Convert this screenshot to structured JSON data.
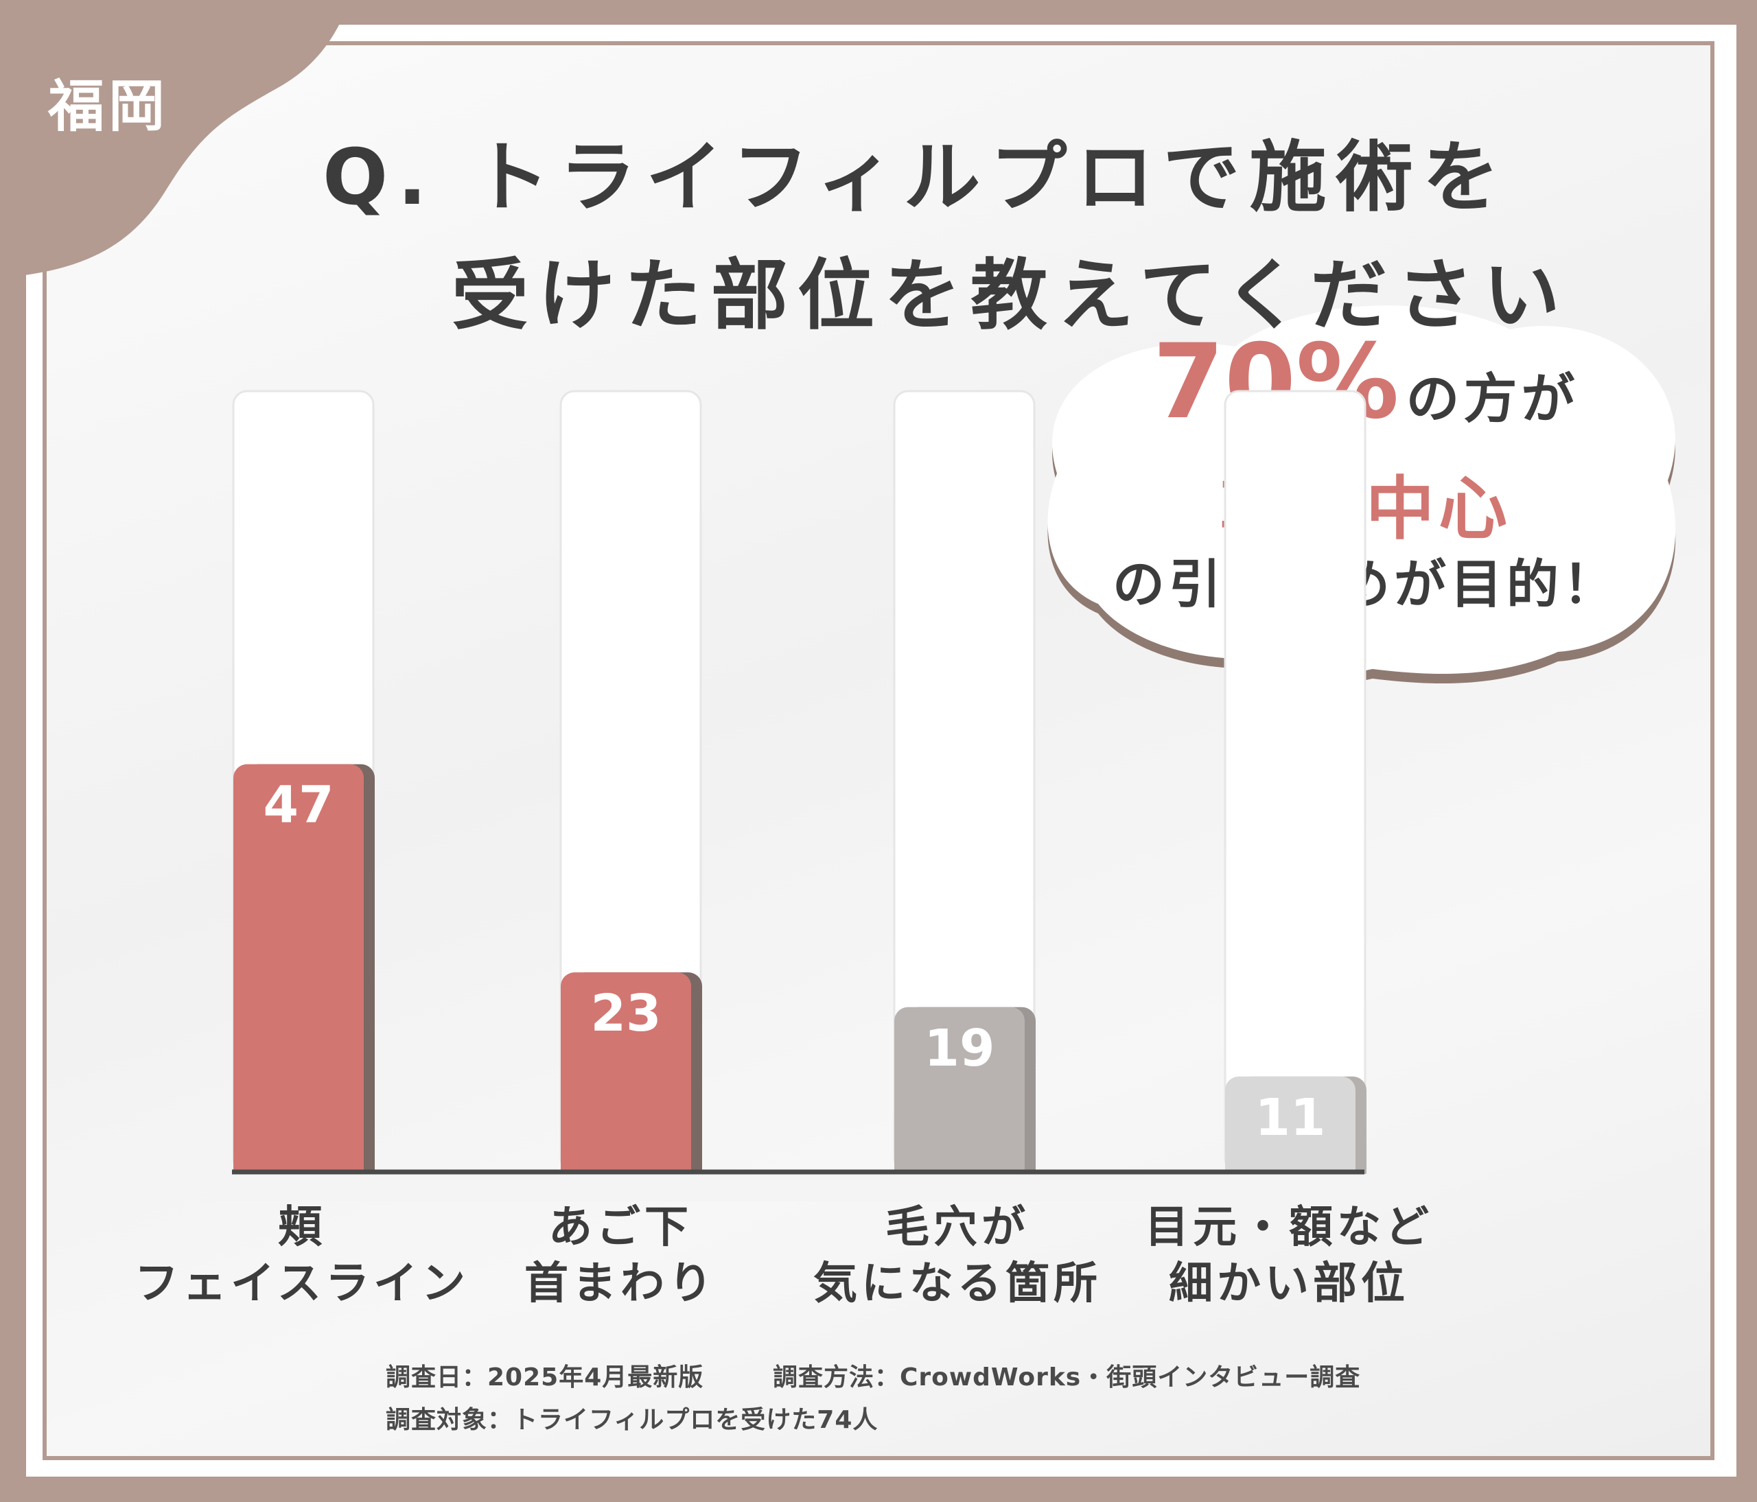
{
  "region_label": "福岡",
  "title": {
    "line1": "Q. トライフィルプロで施術を",
    "line2": "受けた部位を教えてください"
  },
  "callout": {
    "percent": "70%",
    "line1_rest": "の方が",
    "line2": "輪郭中心",
    "line3": "の引き締めが目的！"
  },
  "colors": {
    "frame": "#b39b91",
    "bar_highlight": "#d27672",
    "bar_gray": "#b8b3b1",
    "bar_light": "#d8d8d8",
    "text": "#3c3c3c"
  },
  "chart_data": {
    "type": "bar",
    "categories": [
      "頬\nフェイスライン",
      "あご下\n首まわり",
      "毛穴が\n気になる箇所",
      "目元・額など\n細かい部位"
    ],
    "values": [
      47,
      23,
      19,
      11
    ],
    "grid": false
  },
  "source": {
    "date": "調査日：2025年4月最新版",
    "method": "調査方法：CrowdWorks・街頭インタビュー調査",
    "target": "調査対象：トライフィルプロを受けた74人"
  }
}
